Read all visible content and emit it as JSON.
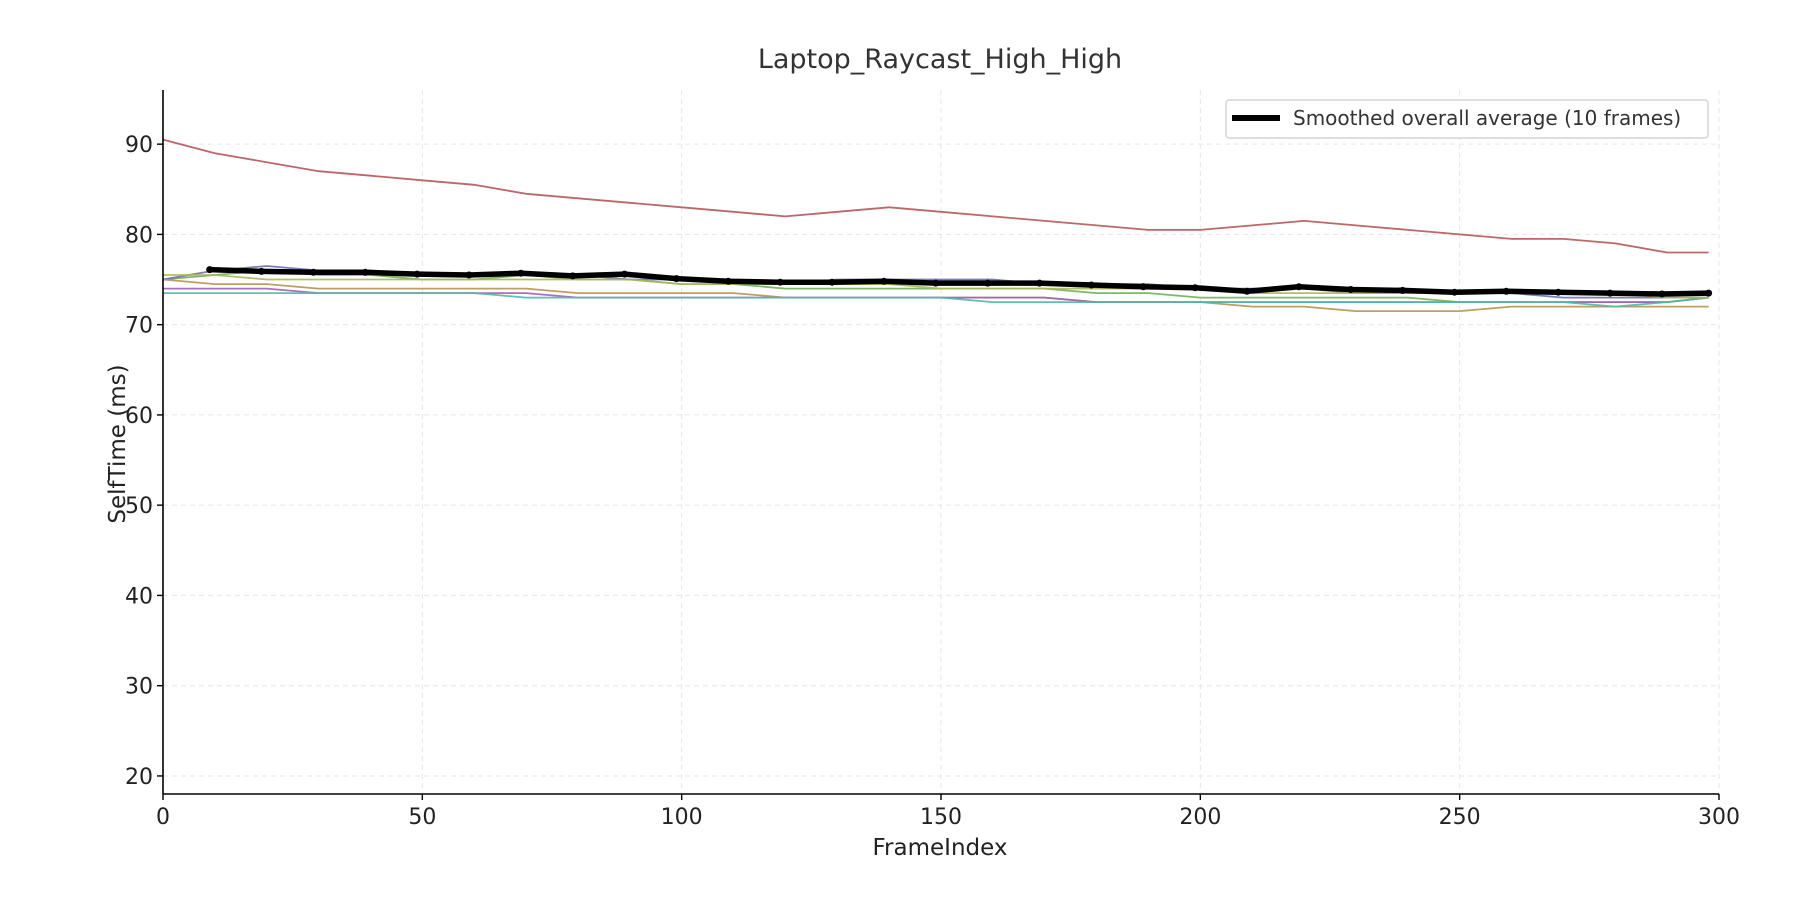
{
  "chart_data": {
    "type": "line",
    "title": "Laptop_Raycast_High_High",
    "xlabel": "FrameIndex",
    "ylabel": "SelfTime (ms)",
    "xlim": [
      0,
      300
    ],
    "ylim": [
      18,
      96
    ],
    "xticks": [
      0,
      50,
      100,
      150,
      200,
      250,
      300
    ],
    "yticks": [
      20,
      30,
      40,
      50,
      60,
      70,
      80,
      90
    ],
    "grid": true,
    "legend_position": "top-right",
    "series": [
      {
        "color": "#b5575a",
        "x": [
          0,
          10,
          20,
          30,
          40,
          50,
          60,
          70,
          80,
          90,
          100,
          110,
          120,
          130,
          140,
          150,
          160,
          170,
          180,
          190,
          200,
          210,
          220,
          230,
          240,
          250,
          260,
          270,
          280,
          290,
          298
        ],
        "y": [
          90.5,
          89,
          88,
          87,
          86.5,
          86,
          85.5,
          84.5,
          84,
          83.5,
          83,
          82.5,
          82,
          82.5,
          83,
          82.5,
          82,
          81.5,
          81,
          80.5,
          80.5,
          81,
          81.5,
          81,
          80.5,
          80,
          79.5,
          79.5,
          79,
          78,
          78
        ]
      },
      {
        "color": "#6fb257",
        "x": [
          0,
          10,
          20,
          30,
          40,
          50,
          60,
          70,
          80,
          90,
          100,
          110,
          120,
          130,
          140,
          150,
          160,
          170,
          180,
          190,
          200,
          210,
          220,
          230,
          240,
          250,
          260,
          270,
          280,
          290,
          298
        ],
        "y": [
          75,
          75.5,
          76,
          75.5,
          75.5,
          75,
          75,
          75.5,
          75,
          75,
          74.5,
          74.5,
          74,
          74,
          74,
          74,
          74,
          74,
          73.5,
          73.5,
          73,
          73,
          73,
          73,
          73,
          72.5,
          72.5,
          72.5,
          72.5,
          72.5,
          73
        ]
      },
      {
        "color": "#6a70b8",
        "x": [
          0,
          10,
          20,
          30,
          40,
          50,
          60,
          70,
          80,
          90,
          100,
          110,
          120,
          130,
          140,
          150,
          160,
          170,
          180,
          190,
          200,
          210,
          220,
          230,
          240,
          250,
          260,
          270,
          280,
          290,
          298
        ],
        "y": [
          75,
          76,
          76.5,
          76,
          76,
          75.5,
          75.5,
          75.5,
          75.5,
          75,
          75,
          74.5,
          74.5,
          75,
          75,
          75,
          75,
          74.5,
          74.5,
          74.5,
          74,
          74,
          74,
          73.5,
          73.5,
          73.5,
          73.5,
          73,
          73,
          73,
          73
        ]
      },
      {
        "color": "#b9934f",
        "x": [
          0,
          10,
          20,
          30,
          40,
          50,
          60,
          70,
          80,
          90,
          100,
          110,
          120,
          130,
          140,
          150,
          160,
          170,
          180,
          190,
          200,
          210,
          220,
          230,
          240,
          250,
          260,
          270,
          280,
          290,
          298
        ],
        "y": [
          75,
          74.5,
          74.5,
          74,
          74,
          74,
          74,
          74,
          73.5,
          73.5,
          73.5,
          73.5,
          73,
          73,
          73,
          73,
          73,
          73,
          72.5,
          72.5,
          72.5,
          72,
          72,
          71.5,
          71.5,
          71.5,
          72,
          72,
          72,
          72,
          72
        ]
      },
      {
        "color": "#a65cb8",
        "x": [
          0,
          10,
          20,
          30,
          40,
          50,
          60,
          70,
          80,
          90,
          100,
          110,
          120,
          130,
          140,
          150,
          160,
          170,
          180,
          190,
          200,
          210,
          220,
          230,
          240,
          250,
          260,
          270,
          280,
          290,
          298
        ],
        "y": [
          74,
          74,
          74,
          73.5,
          73.5,
          73.5,
          73.5,
          73.5,
          73,
          73,
          73,
          73,
          73,
          73,
          73,
          73,
          73,
          73,
          72.5,
          72.5,
          72.5,
          72.5,
          72.5,
          72.5,
          72.5,
          72.5,
          72.5,
          72.5,
          72.5,
          72.5,
          73
        ]
      },
      {
        "color": "#4fb8a8",
        "x": [
          0,
          10,
          20,
          30,
          40,
          50,
          60,
          70,
          80,
          90,
          100,
          110,
          120,
          130,
          140,
          150,
          160,
          170,
          180,
          190,
          200,
          210,
          220,
          230,
          240,
          250,
          260,
          270,
          280,
          290,
          298
        ],
        "y": [
          73.5,
          73.5,
          73.5,
          73.5,
          73.5,
          73.5,
          73.5,
          73,
          73,
          73,
          73,
          73,
          73,
          73,
          73,
          73,
          72.5,
          72.5,
          72.5,
          72.5,
          72.5,
          72.5,
          72.5,
          72.5,
          72.5,
          72.5,
          72.5,
          72.5,
          72,
          72.5,
          73
        ]
      },
      {
        "color": "#a9b957",
        "x": [
          0,
          10,
          20,
          30,
          40,
          50,
          60,
          70,
          80,
          90,
          100,
          110,
          120,
          130,
          140,
          150,
          160,
          170,
          180,
          190,
          200,
          210,
          220,
          230,
          240,
          250,
          260,
          270,
          280,
          290,
          298
        ],
        "y": [
          75.5,
          75.5,
          75,
          75,
          75,
          75,
          75,
          75,
          75,
          75,
          74.5,
          74.5,
          74.5,
          74.5,
          74.5,
          74,
          74,
          74,
          74,
          74,
          74,
          73.5,
          73.5,
          73.5,
          73.5,
          73.5,
          73.5,
          73.5,
          73.5,
          73,
          73
        ]
      }
    ],
    "average": {
      "name": "Smoothed overall average (10 frames)",
      "color": "#000000",
      "x": [
        9,
        19,
        29,
        39,
        49,
        59,
        69,
        79,
        89,
        99,
        109,
        119,
        129,
        139,
        149,
        159,
        169,
        179,
        189,
        199,
        209,
        219,
        229,
        239,
        249,
        259,
        269,
        279,
        289,
        298
      ],
      "y": [
        76.1,
        75.9,
        75.8,
        75.8,
        75.6,
        75.5,
        75.7,
        75.4,
        75.6,
        75.1,
        74.8,
        74.7,
        74.7,
        74.8,
        74.6,
        74.6,
        74.6,
        74.4,
        74.2,
        74.1,
        73.7,
        74.2,
        73.9,
        73.8,
        73.6,
        73.7,
        73.6,
        73.5,
        73.4,
        73.5
      ]
    }
  }
}
